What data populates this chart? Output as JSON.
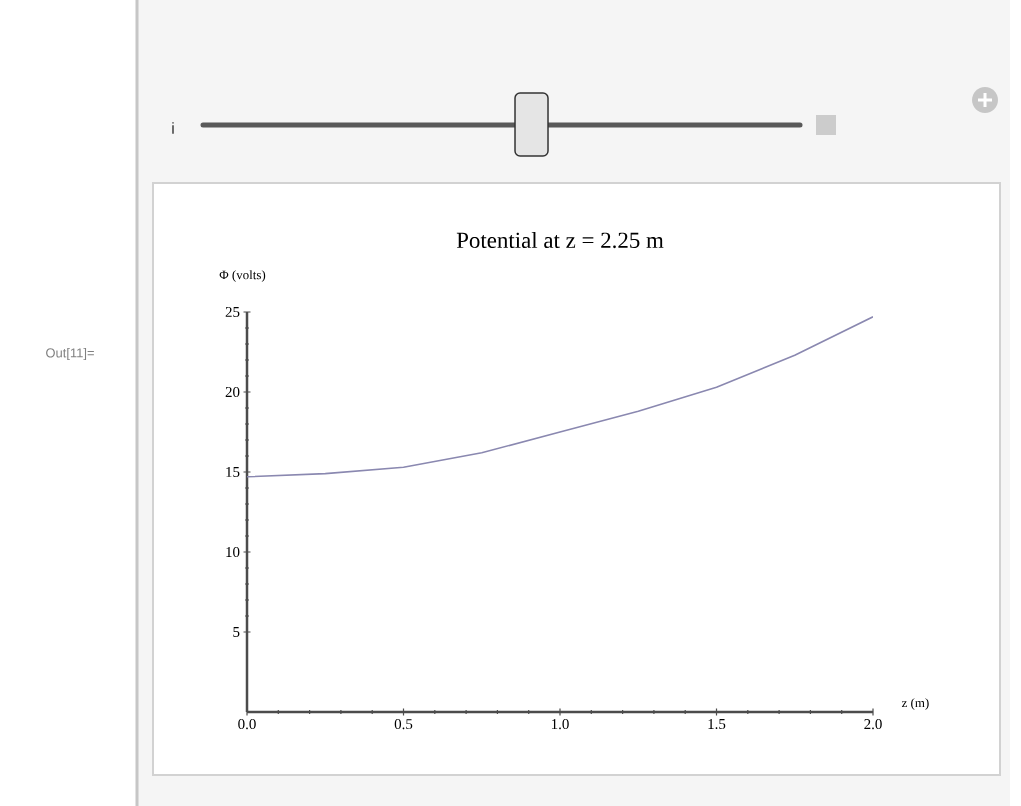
{
  "chart_data": {
    "type": "line",
    "title": "Potential at z = 2.25 m",
    "xlabel": "z (m)",
    "ylabel": "Φ (volts)",
    "annotations": [
      "Out[11]=",
      "i"
    ],
    "x": [
      0,
      0.25,
      0.5,
      0.75,
      1.0,
      1.25,
      1.5,
      1.75,
      2.0
    ],
    "series": [
      {
        "color": "#8a88b0",
        "values": [
          14.7,
          14.9,
          15.3,
          16.2,
          17.5,
          18.8,
          20.3,
          22.3,
          24.7
        ]
      }
    ],
    "xlim": [
      0,
      2
    ],
    "ylim": [
      0,
      25
    ],
    "xticks": [
      {
        "value": 0,
        "label": "0.0"
      },
      {
        "value": 0.5,
        "label": "0.5"
      },
      {
        "value": 1.0,
        "label": "1.0"
      },
      {
        "value": 1.5,
        "label": "1.5"
      },
      {
        "value": 2.0,
        "label": "2.0"
      }
    ],
    "yticks": [
      5,
      10,
      15,
      20,
      25
    ]
  }
}
